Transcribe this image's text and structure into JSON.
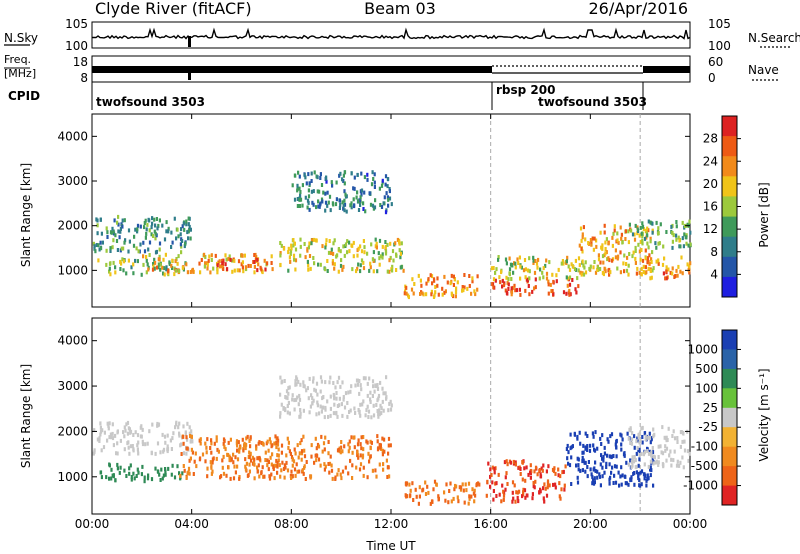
{
  "header": {
    "station": "Clyde River (fitACF)",
    "beam": "Beam 03",
    "date": "26/Apr/2016"
  },
  "strip_labels": {
    "nsky": "N.Sky",
    "nsky_ticks": [
      "10^5",
      "10^0"
    ],
    "nsearch": "N.Search",
    "nsearch_ticks": [
      "10^5",
      "10^0"
    ],
    "freq": "Freq.",
    "freq_unit": "[MHz]",
    "freq_ticks": [
      "18",
      "8"
    ],
    "nave": "Nave",
    "nave_ticks": [
      "60",
      "0"
    ],
    "cpid": "CPID"
  },
  "cpid_segments": [
    {
      "name": "twofsound 3503",
      "start_hour": 0,
      "end_hour": 16
    },
    {
      "name": "rbsp 200",
      "start_hour": 16,
      "end_hour": 22
    },
    {
      "name": "twofsound 3503",
      "start_hour": 16,
      "end_hour": 22
    }
  ],
  "colors": {
    "power_scale": [
      "#1f1fe0",
      "#2456a8",
      "#2f7d8a",
      "#3f9a5a",
      "#9cc93c",
      "#f0c419",
      "#f28a1a",
      "#ee5a14",
      "#dd2222"
    ],
    "velocity_scale": [
      "#1a3fb3",
      "#2a63a8",
      "#2e8a55",
      "#68c23a",
      "#c8c8c8",
      "#f2b233",
      "#f08a1f",
      "#ee6418",
      "#e02424"
    ]
  },
  "chart_data": [
    {
      "type": "heatmap",
      "title": "",
      "xlabel": "",
      "ylabel": "Slant Range [km]",
      "x_ticks": [
        "00:00",
        "04:00",
        "08:00",
        "12:00",
        "16:00",
        "20:00",
        "00:00"
      ],
      "y_ticks": [
        1000,
        2000,
        3000,
        4000
      ],
      "xlim_hours": [
        0,
        24
      ],
      "ylim_km": [
        180,
        4500
      ],
      "colorbar_label": "Power [dB]",
      "colorbar_ticks": [
        "4",
        "8",
        "12",
        "16",
        "20",
        "24",
        "28"
      ],
      "colorbar_range": [
        0,
        30
      ],
      "bands": [
        {
          "t0": 0.0,
          "t1": 4.0,
          "r0": 1400,
          "r1": 2200,
          "value": 10
        },
        {
          "t0": 0.2,
          "t1": 3.8,
          "r0": 900,
          "r1": 1250,
          "value": 14
        },
        {
          "t0": 2.0,
          "t1": 7.5,
          "r0": 950,
          "r1": 1350,
          "value": 20
        },
        {
          "t0": 5.0,
          "t1": 7.0,
          "r0": 1000,
          "r1": 1250,
          "value": 26
        },
        {
          "t0": 7.5,
          "t1": 12.5,
          "r0": 950,
          "r1": 1700,
          "value": 16
        },
        {
          "t0": 8.0,
          "t1": 12.0,
          "r0": 2300,
          "r1": 3200,
          "value": 8
        },
        {
          "t0": 12.5,
          "t1": 15.5,
          "r0": 400,
          "r1": 900,
          "value": 22
        },
        {
          "t0": 16.0,
          "t1": 19.5,
          "r0": 450,
          "r1": 800,
          "value": 27
        },
        {
          "t0": 16.0,
          "t1": 20.0,
          "r0": 800,
          "r1": 1300,
          "value": 17
        },
        {
          "t0": 19.5,
          "t1": 22.5,
          "r0": 900,
          "r1": 2000,
          "value": 20
        },
        {
          "t0": 22.0,
          "t1": 24.0,
          "r0": 800,
          "r1": 1300,
          "value": 22
        },
        {
          "t0": 21.5,
          "t1": 24.0,
          "r0": 1500,
          "r1": 2100,
          "value": 12
        }
      ]
    },
    {
      "type": "heatmap",
      "title": "",
      "xlabel": "Time UT",
      "ylabel": "Slant Range [km]",
      "x_ticks": [
        "00:00",
        "04:00",
        "08:00",
        "12:00",
        "16:00",
        "20:00",
        "00:00"
      ],
      "y_ticks": [
        1000,
        2000,
        3000,
        4000
      ],
      "xlim_hours": [
        0,
        24
      ],
      "ylim_km": [
        180,
        4500
      ],
      "colorbar_label": "Velocity [m s^-1]",
      "colorbar_ticks": [
        "1000",
        "500",
        "100",
        "25",
        "-25",
        "-100",
        "-500",
        "-1000"
      ],
      "bands": [
        {
          "t0": 0.0,
          "t1": 4.0,
          "r0": 1500,
          "r1": 2200,
          "value": 0
        },
        {
          "t0": 0.2,
          "t1": 3.8,
          "r0": 900,
          "r1": 1300,
          "value": 150
        },
        {
          "t0": 3.5,
          "t1": 12.0,
          "r0": 950,
          "r1": 1900,
          "value": -300
        },
        {
          "t0": 7.5,
          "t1": 12.0,
          "r0": 2300,
          "r1": 3200,
          "value": 0
        },
        {
          "t0": 12.5,
          "t1": 15.5,
          "r0": 400,
          "r1": 900,
          "value": -300
        },
        {
          "t0": 15.8,
          "t1": 19.0,
          "r0": 450,
          "r1": 1350,
          "value": -700
        },
        {
          "t0": 19.0,
          "t1": 22.5,
          "r0": 800,
          "r1": 2000,
          "value": 800
        },
        {
          "t0": 21.5,
          "t1": 24.0,
          "r0": 1200,
          "r1": 2100,
          "value": 0
        }
      ]
    }
  ]
}
